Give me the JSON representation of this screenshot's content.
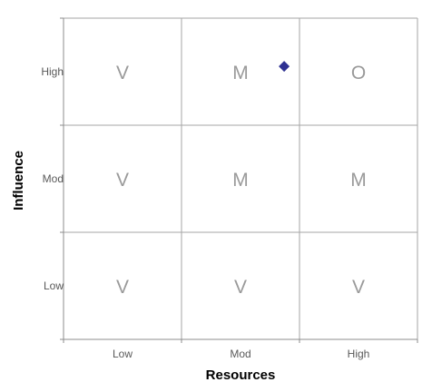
{
  "chart_data": {
    "type": "scatter",
    "title": "",
    "xlabel": "Resources",
    "ylabel": "Influence",
    "x_categories": [
      "Low",
      "Mod",
      "High"
    ],
    "y_categories": [
      "Low",
      "Mod",
      "High"
    ],
    "xlim": [
      0,
      3
    ],
    "ylim": [
      0,
      3
    ],
    "grid": true,
    "legend": "none",
    "cells": [
      [
        "V",
        "V",
        "V"
      ],
      [
        "V",
        "M",
        "M"
      ],
      [
        "V",
        "M",
        "O"
      ]
    ],
    "cell_text_color": "#9a9a9a",
    "series": [
      {
        "marker": "diamond",
        "color": "#2e3192",
        "points": [
          {
            "x": 1.87,
            "y": 2.55
          }
        ]
      }
    ]
  }
}
